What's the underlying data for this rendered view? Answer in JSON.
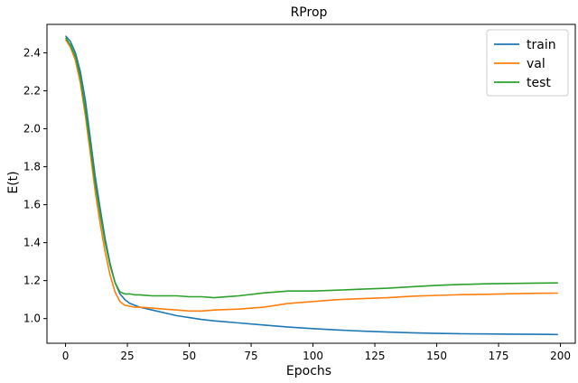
{
  "chart_data": {
    "type": "line",
    "title": "RProp",
    "xlabel": "Epochs",
    "ylabel": "E(t)",
    "xlim": [
      -7.5,
      206
    ],
    "ylim": [
      0.87,
      2.55
    ],
    "xticks": [
      0,
      25,
      50,
      75,
      100,
      125,
      150,
      175,
      200
    ],
    "yticks": [
      1.0,
      1.2,
      1.4,
      1.6,
      1.8,
      2.0,
      2.2,
      2.4
    ],
    "ytick_labels": [
      "1.0",
      "1.2",
      "1.4",
      "1.6",
      "1.8",
      "2.0",
      "2.2",
      "2.4"
    ],
    "xtick_labels": [
      "0",
      "25",
      "50",
      "75",
      "100",
      "125",
      "150",
      "175",
      "200"
    ],
    "grid": false,
    "legend": "top-right",
    "series": [
      {
        "name": "train",
        "color": "#1f77b4",
        "x": [
          0,
          2,
          4,
          6,
          8,
          10,
          12,
          14,
          16,
          18,
          20,
          22,
          24,
          26,
          28,
          30,
          35,
          40,
          45,
          50,
          55,
          60,
          70,
          80,
          90,
          100,
          110,
          120,
          130,
          140,
          150,
          160,
          170,
          180,
          190,
          199
        ],
        "y": [
          2.49,
          2.46,
          2.4,
          2.3,
          2.15,
          1.95,
          1.75,
          1.58,
          1.42,
          1.29,
          1.19,
          1.13,
          1.1,
          1.08,
          1.07,
          1.06,
          1.045,
          1.03,
          1.015,
          1.005,
          0.995,
          0.988,
          0.977,
          0.966,
          0.955,
          0.947,
          0.94,
          0.934,
          0.929,
          0.925,
          0.922,
          0.92,
          0.919,
          0.918,
          0.917,
          0.916
        ]
      },
      {
        "name": "val",
        "color": "#ff7f0e",
        "x": [
          0,
          2,
          4,
          6,
          8,
          10,
          12,
          14,
          16,
          18,
          20,
          22,
          24,
          26,
          28,
          30,
          35,
          40,
          45,
          50,
          55,
          60,
          70,
          80,
          90,
          100,
          110,
          120,
          130,
          140,
          150,
          160,
          170,
          180,
          190,
          199
        ],
        "y": [
          2.47,
          2.43,
          2.36,
          2.24,
          2.07,
          1.87,
          1.67,
          1.5,
          1.35,
          1.23,
          1.14,
          1.09,
          1.07,
          1.065,
          1.06,
          1.06,
          1.055,
          1.05,
          1.045,
          1.04,
          1.04,
          1.045,
          1.05,
          1.06,
          1.08,
          1.09,
          1.1,
          1.105,
          1.11,
          1.118,
          1.122,
          1.126,
          1.128,
          1.131,
          1.133,
          1.134
        ]
      },
      {
        "name": "test",
        "color": "#2ca02c",
        "x": [
          0,
          2,
          4,
          6,
          8,
          10,
          12,
          14,
          16,
          18,
          20,
          22,
          24,
          26,
          28,
          30,
          35,
          40,
          45,
          50,
          55,
          60,
          70,
          80,
          90,
          100,
          110,
          120,
          130,
          140,
          150,
          160,
          170,
          180,
          190,
          199
        ],
        "y": [
          2.48,
          2.44,
          2.38,
          2.27,
          2.1,
          1.91,
          1.71,
          1.55,
          1.4,
          1.28,
          1.19,
          1.14,
          1.13,
          1.13,
          1.125,
          1.125,
          1.12,
          1.12,
          1.12,
          1.115,
          1.115,
          1.11,
          1.12,
          1.135,
          1.145,
          1.145,
          1.15,
          1.155,
          1.16,
          1.168,
          1.175,
          1.18,
          1.183,
          1.185,
          1.187,
          1.188
        ]
      }
    ]
  }
}
